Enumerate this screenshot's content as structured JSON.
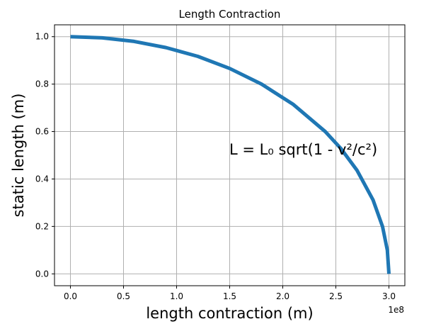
{
  "chart_data": {
    "type": "line",
    "title": "Length Contraction",
    "xlabel": "length contraction (m)",
    "ylabel": "static length (m)",
    "x_offset_label": "1e8",
    "annotation": "L = L₀ sqrt(1 - v²/c²)",
    "xlim": [
      -0.15,
      3.15
    ],
    "ylim": [
      -0.05,
      1.05
    ],
    "x_unit_multiplier": 100000000,
    "x_ticks": [
      0.0,
      0.5,
      1.0,
      1.5,
      2.0,
      2.5,
      3.0
    ],
    "x_tick_labels": [
      "0.0",
      "0.5",
      "1.0",
      "1.5",
      "2.0",
      "2.5",
      "3.0"
    ],
    "y_ticks": [
      0.0,
      0.2,
      0.4,
      0.6,
      0.8,
      1.0
    ],
    "y_tick_labels": [
      "0.0",
      "0.2",
      "0.4",
      "0.6",
      "0.8",
      "1.0"
    ],
    "grid": true,
    "series": [
      {
        "color": "#1f77b4",
        "x": [
          0.0,
          0.3,
          0.6,
          0.9,
          1.2,
          1.5,
          1.8,
          2.1,
          2.4,
          2.55,
          2.7,
          2.85,
          2.94,
          2.985,
          3.0
        ],
        "y": [
          1.0,
          0.995,
          0.98,
          0.954,
          0.917,
          0.866,
          0.8,
          0.714,
          0.6,
          0.527,
          0.436,
          0.312,
          0.199,
          0.1,
          0.0
        ]
      }
    ]
  }
}
